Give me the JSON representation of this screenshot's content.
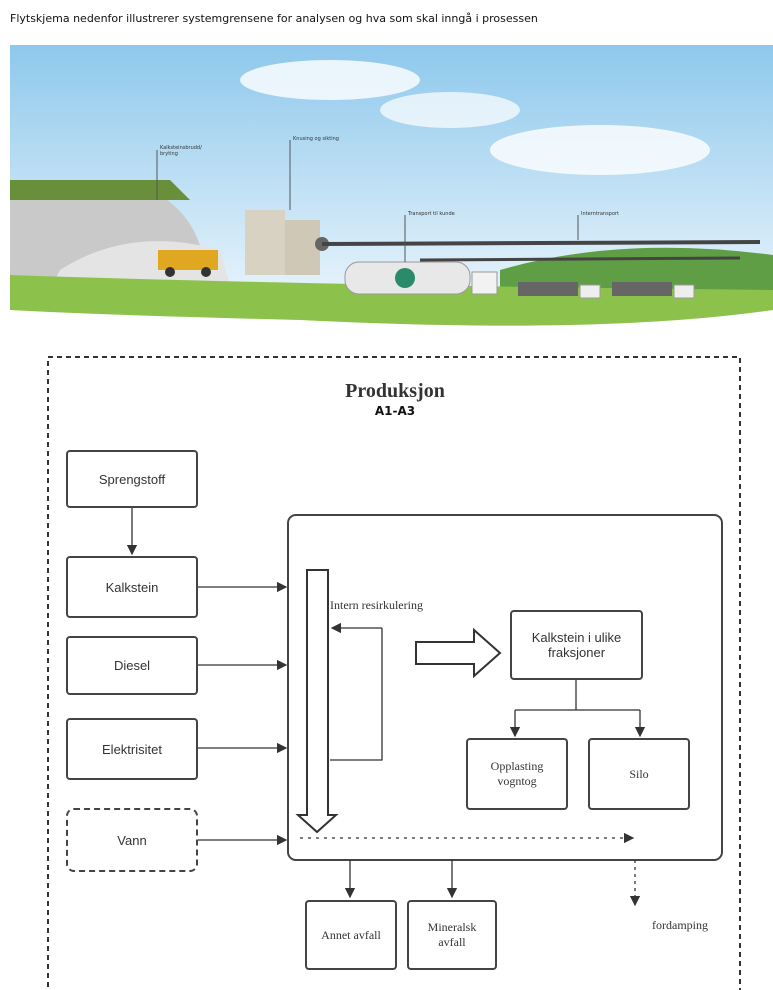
{
  "caption": "Flytskjema nedenfor illustrerer systemgrensene for analysen og hva som skal inngå i prosessen",
  "illustration": {
    "labels": [
      "Kalksteinsbrudd/ bryting",
      "Knusing og sikting",
      "Transport til kunde",
      "Interntransport"
    ]
  },
  "diagram": {
    "title": "Produksjon",
    "subtitle": "A1-A3",
    "inputs": [
      "Sprengstoff",
      "Kalkstein",
      "Diesel",
      "Elektrisitet",
      "Vann"
    ],
    "recycling": "Intern resirkulering",
    "product": "Kalkstein i ulike fraksjoner",
    "outputs": [
      "Opplasting vogntog",
      "Silo"
    ],
    "waste": [
      "Annet avfall",
      "Mineralsk avfall"
    ],
    "evaporation": "fordamping"
  }
}
